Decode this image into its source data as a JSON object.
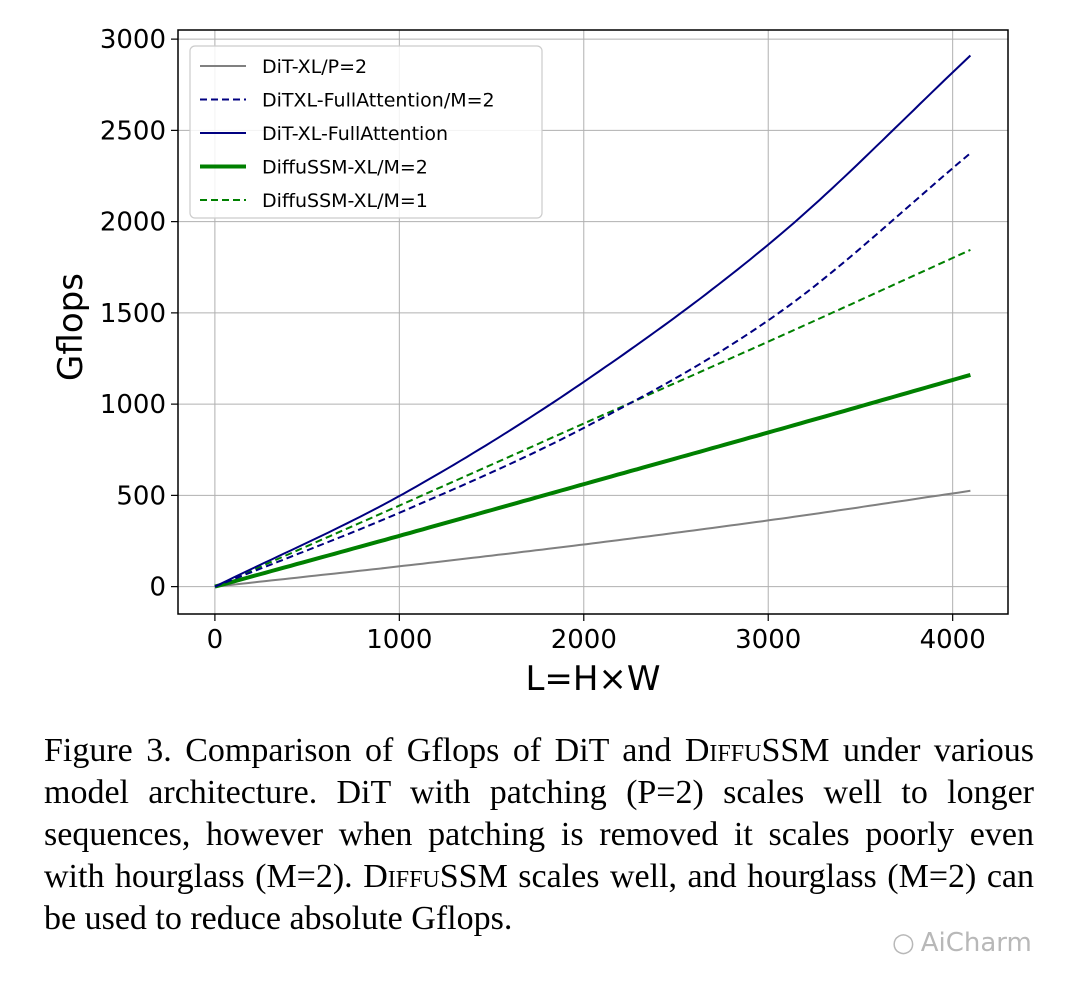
{
  "chart_data": {
    "type": "line",
    "xlabel": "L=H×W",
    "ylabel": "Gflops",
    "xlim": [
      -200,
      4300
    ],
    "ylim": [
      -150,
      3050
    ],
    "xticks": [
      0,
      1000,
      2000,
      3000,
      4000
    ],
    "yticks": [
      0,
      500,
      1000,
      1500,
      2000,
      2500,
      3000
    ],
    "xtick_labels": [
      "0",
      "1000",
      "2000",
      "3000",
      "4000"
    ],
    "ytick_labels": [
      "0",
      "500",
      "1000",
      "1500",
      "2000",
      "2500",
      "3000"
    ],
    "grid": true,
    "legend_position": "top-left",
    "series": [
      {
        "name": "DiT-XL/P=2",
        "color": "#808080",
        "style": "solid",
        "width": 2,
        "x": [
          0,
          1024,
          2048,
          3072,
          4096
        ],
        "y": [
          0,
          114,
          237,
          373,
          525
        ]
      },
      {
        "name": "DiTXL-FullAttention/M=2",
        "color": "#000080",
        "style": "dashed",
        "width": 2,
        "x": [
          0,
          1024,
          2048,
          3072,
          4096
        ],
        "y": [
          0,
          415,
          895,
          1510,
          2375
        ]
      },
      {
        "name": "DiT-XL-FullAttention",
        "color": "#000080",
        "style": "solid",
        "width": 2,
        "x": [
          0,
          1024,
          2048,
          3072,
          4096
        ],
        "y": [
          0,
          510,
          1155,
          1935,
          2910
        ]
      },
      {
        "name": "DiffuSSM-XL/M=2",
        "color": "#008000",
        "style": "solid",
        "width": 4,
        "x": [
          0,
          1024,
          2048,
          3072,
          4096
        ],
        "y": [
          0,
          285,
          575,
          865,
          1160
        ]
      },
      {
        "name": "DiffuSSM-XL/M=1",
        "color": "#008000",
        "style": "dashed",
        "width": 2,
        "x": [
          0,
          1024,
          2048,
          3072,
          4096
        ],
        "y": [
          0,
          455,
          915,
          1375,
          1845
        ]
      }
    ]
  },
  "caption": {
    "part1": "Figure 3.  Comparison of Gflops of DiT and ",
    "name1": "DiffuSSM",
    "part2": " under various model architecture. DiT with patching (P=2) scales well to longer sequences, however when patching is removed it scales poorly even with hourglass (M=2). ",
    "name2": "DiffuSSM",
    "part3": " scales well, and hourglass (M=2) can be used to reduce absolute Gflops."
  },
  "watermark": {
    "icon": "wechat-icon",
    "text": "AiCharm"
  }
}
